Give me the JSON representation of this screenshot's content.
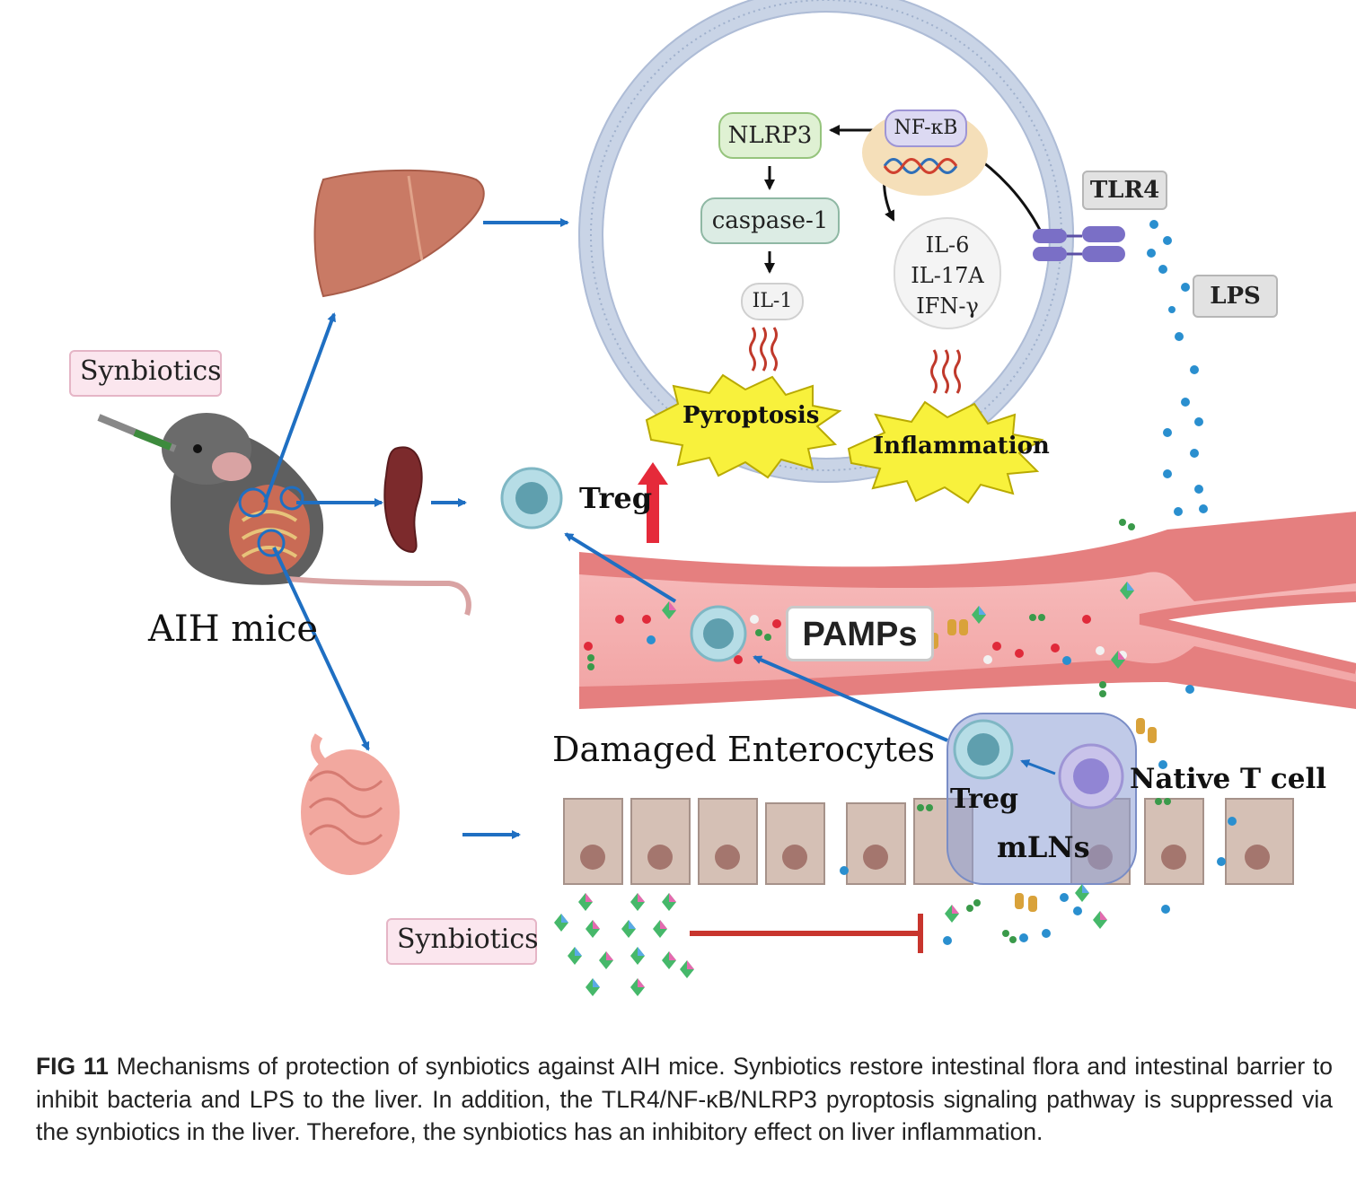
{
  "labels": {
    "synbiotics_top": "Synbiotics",
    "aih_mice": "AIH mice",
    "nlrp3": "NLRP3",
    "nfkb": "NF-κB",
    "caspase1": "caspase-1",
    "il1": "IL-1",
    "cytokines": [
      "IL-6",
      "IL-17A",
      "IFN-γ"
    ],
    "tlr4": "TLR4",
    "lps": "LPS",
    "pyroptosis": "Pyroptosis",
    "inflammation": "Inflammation",
    "treg_top": "Treg",
    "pamps": "PAMPs",
    "damaged_enterocytes": "Damaged Enterocytes",
    "treg_mln": "Treg",
    "native_t_cell": "Native T cell",
    "mlns": "mLNs",
    "synbiotics_bottom": "Synbiotics"
  },
  "caption": {
    "label": "FIG 11",
    "text": "Mechanisms of protection of synbiotics against AIH mice. Synbiotics restore intestinal flora and intestinal barrier to inhibit bacteria and LPS to the liver. In addition, the TLR4/NF-κB/NLRP3 pyroptosis signaling pathway is suppressed via the synbiotics in the liver. Therefore, the synbiotics has an inhibitory effect on liver inflammation."
  },
  "colors": {
    "arrow_blue": "#1f6fc2",
    "inhibit_red": "#c8352d",
    "vessel": "#e57f7f",
    "cell_membrane": "#c9d4e6"
  }
}
